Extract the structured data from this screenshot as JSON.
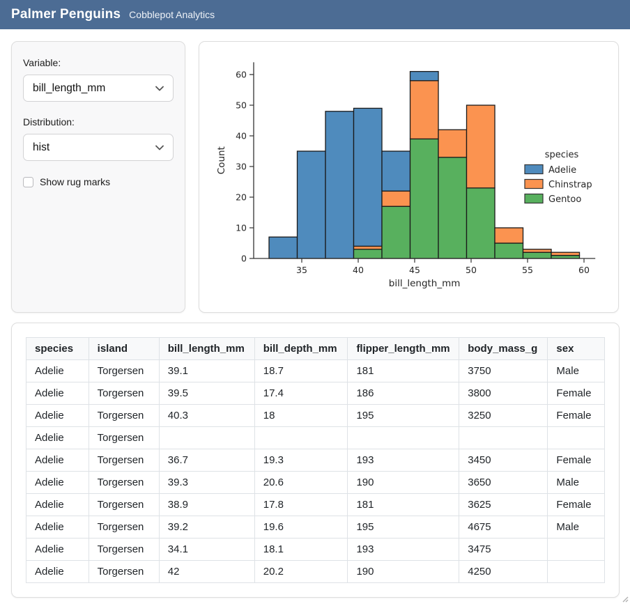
{
  "header": {
    "title": "Palmer Penguins",
    "subtitle": "Cobblepot Analytics"
  },
  "sidebar": {
    "variable_label": "Variable:",
    "variable_value": "bill_length_mm",
    "distribution_label": "Distribution:",
    "distribution_value": "hist",
    "rug_label": "Show rug marks",
    "rug_checked": false
  },
  "chart_data": {
    "type": "bar",
    "subtype": "stacked-histogram",
    "title": "",
    "xlabel": "bill_length_mm",
    "ylabel": "Count",
    "bin_start": 32.1,
    "bin_width": 2.5,
    "bin_edges": [
      32.1,
      34.6,
      37.1,
      39.6,
      42.1,
      44.6,
      47.1,
      49.6,
      52.1,
      54.6,
      57.1,
      59.6
    ],
    "series": [
      {
        "name": "Gentoo",
        "color": "#58b05e",
        "values": [
          0,
          0,
          0,
          3,
          17,
          39,
          33,
          23,
          5,
          2,
          1
        ]
      },
      {
        "name": "Chinstrap",
        "color": "#fb9350",
        "values": [
          0,
          0,
          0,
          1,
          5,
          19,
          9,
          27,
          5,
          1,
          1
        ]
      },
      {
        "name": "Adelie",
        "color": "#4f8bbd",
        "values": [
          7,
          35,
          48,
          45,
          13,
          3,
          0,
          0,
          0,
          0,
          0
        ]
      }
    ],
    "bin_totals": [
      7,
      35,
      48,
      49,
      35,
      61,
      42,
      50,
      10,
      3,
      2
    ],
    "xticks": [
      35,
      40,
      45,
      50,
      55,
      60
    ],
    "yticks": [
      0,
      10,
      20,
      30,
      40,
      50,
      60
    ],
    "xlim": [
      30.7,
      61.0
    ],
    "ylim": [
      0,
      64
    ],
    "grid": false,
    "legend": {
      "title": "species",
      "position": "right",
      "order": [
        "Adelie",
        "Chinstrap",
        "Gentoo"
      ]
    },
    "edge_color": "#1a1a1a",
    "spine_color": "#333333",
    "text_color": "#262626"
  },
  "table": {
    "columns": [
      "species",
      "island",
      "bill_length_mm",
      "bill_depth_mm",
      "flipper_length_mm",
      "body_mass_g",
      "sex"
    ],
    "col_widths_pct": [
      11.0,
      12.4,
      16.8,
      16.4,
      19.6,
      15.6,
      10.0
    ],
    "rows": [
      [
        "Adelie",
        "Torgersen",
        "39.1",
        "18.7",
        "181",
        "3750",
        "Male"
      ],
      [
        "Adelie",
        "Torgersen",
        "39.5",
        "17.4",
        "186",
        "3800",
        "Female"
      ],
      [
        "Adelie",
        "Torgersen",
        "40.3",
        "18",
        "195",
        "3250",
        "Female"
      ],
      [
        "Adelie",
        "Torgersen",
        "",
        "",
        "",
        "",
        ""
      ],
      [
        "Adelie",
        "Torgersen",
        "36.7",
        "19.3",
        "193",
        "3450",
        "Female"
      ],
      [
        "Adelie",
        "Torgersen",
        "39.3",
        "20.6",
        "190",
        "3650",
        "Male"
      ],
      [
        "Adelie",
        "Torgersen",
        "38.9",
        "17.8",
        "181",
        "3625",
        "Female"
      ],
      [
        "Adelie",
        "Torgersen",
        "39.2",
        "19.6",
        "195",
        "4675",
        "Male"
      ],
      [
        "Adelie",
        "Torgersen",
        "34.1",
        "18.1",
        "193",
        "3475",
        ""
      ],
      [
        "Adelie",
        "Torgersen",
        "42",
        "20.2",
        "190",
        "4250",
        ""
      ]
    ]
  },
  "colors": {
    "header_bg": "#4c6c94",
    "adelie": "#4f8bbd",
    "chinstrap": "#fb9350",
    "gentoo": "#58b05e",
    "card_border": "#dddddd",
    "sidebar_bg": "#f8f8f9",
    "table_header_bg": "#f8f9fa"
  },
  "icons": {
    "variable_chevron": "chevron-down",
    "distribution_chevron": "chevron-down"
  }
}
